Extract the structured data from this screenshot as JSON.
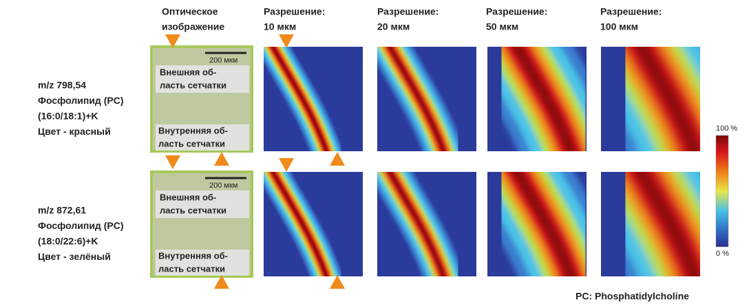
{
  "columns": [
    {
      "lines": [
        "Оптическое",
        "изображение"
      ]
    },
    {
      "lines": [
        "Разрешение:",
        "10 мкм"
      ]
    },
    {
      "lines": [
        "Разрешение:",
        "20 мкм"
      ]
    },
    {
      "lines": [
        "Разрешение:",
        "50 мкм"
      ]
    },
    {
      "lines": [
        "Разрешение:",
        "100 мкм"
      ]
    }
  ],
  "rows": [
    {
      "label_lines": [
        "m/z 798,54",
        "Фосфолипид (PC)",
        "(16:0/18:1)+K",
        "Цвет - красный"
      ],
      "scale_bar": "200 мкм",
      "outer_region": [
        "Внешняя об-",
        "ласть сетчатки"
      ],
      "inner_region": [
        "Внутренняя об-",
        "ласть сетчатки"
      ]
    },
    {
      "label_lines": [
        "m/z 872,61",
        "Фосфолипид (PC)",
        "(18:0/22:6)+K",
        "Цвет - зелёный"
      ],
      "scale_bar": "200 мкм",
      "outer_region": [
        "Внешняя об-",
        "ласть сетчатки"
      ],
      "inner_region": [
        "Внутренняя об-",
        "ласть сетчатки"
      ]
    }
  ],
  "colorbar": {
    "max_label": "100 %",
    "min_label": "0 %"
  },
  "footnote": "PC: Phosphatidylcholine"
}
